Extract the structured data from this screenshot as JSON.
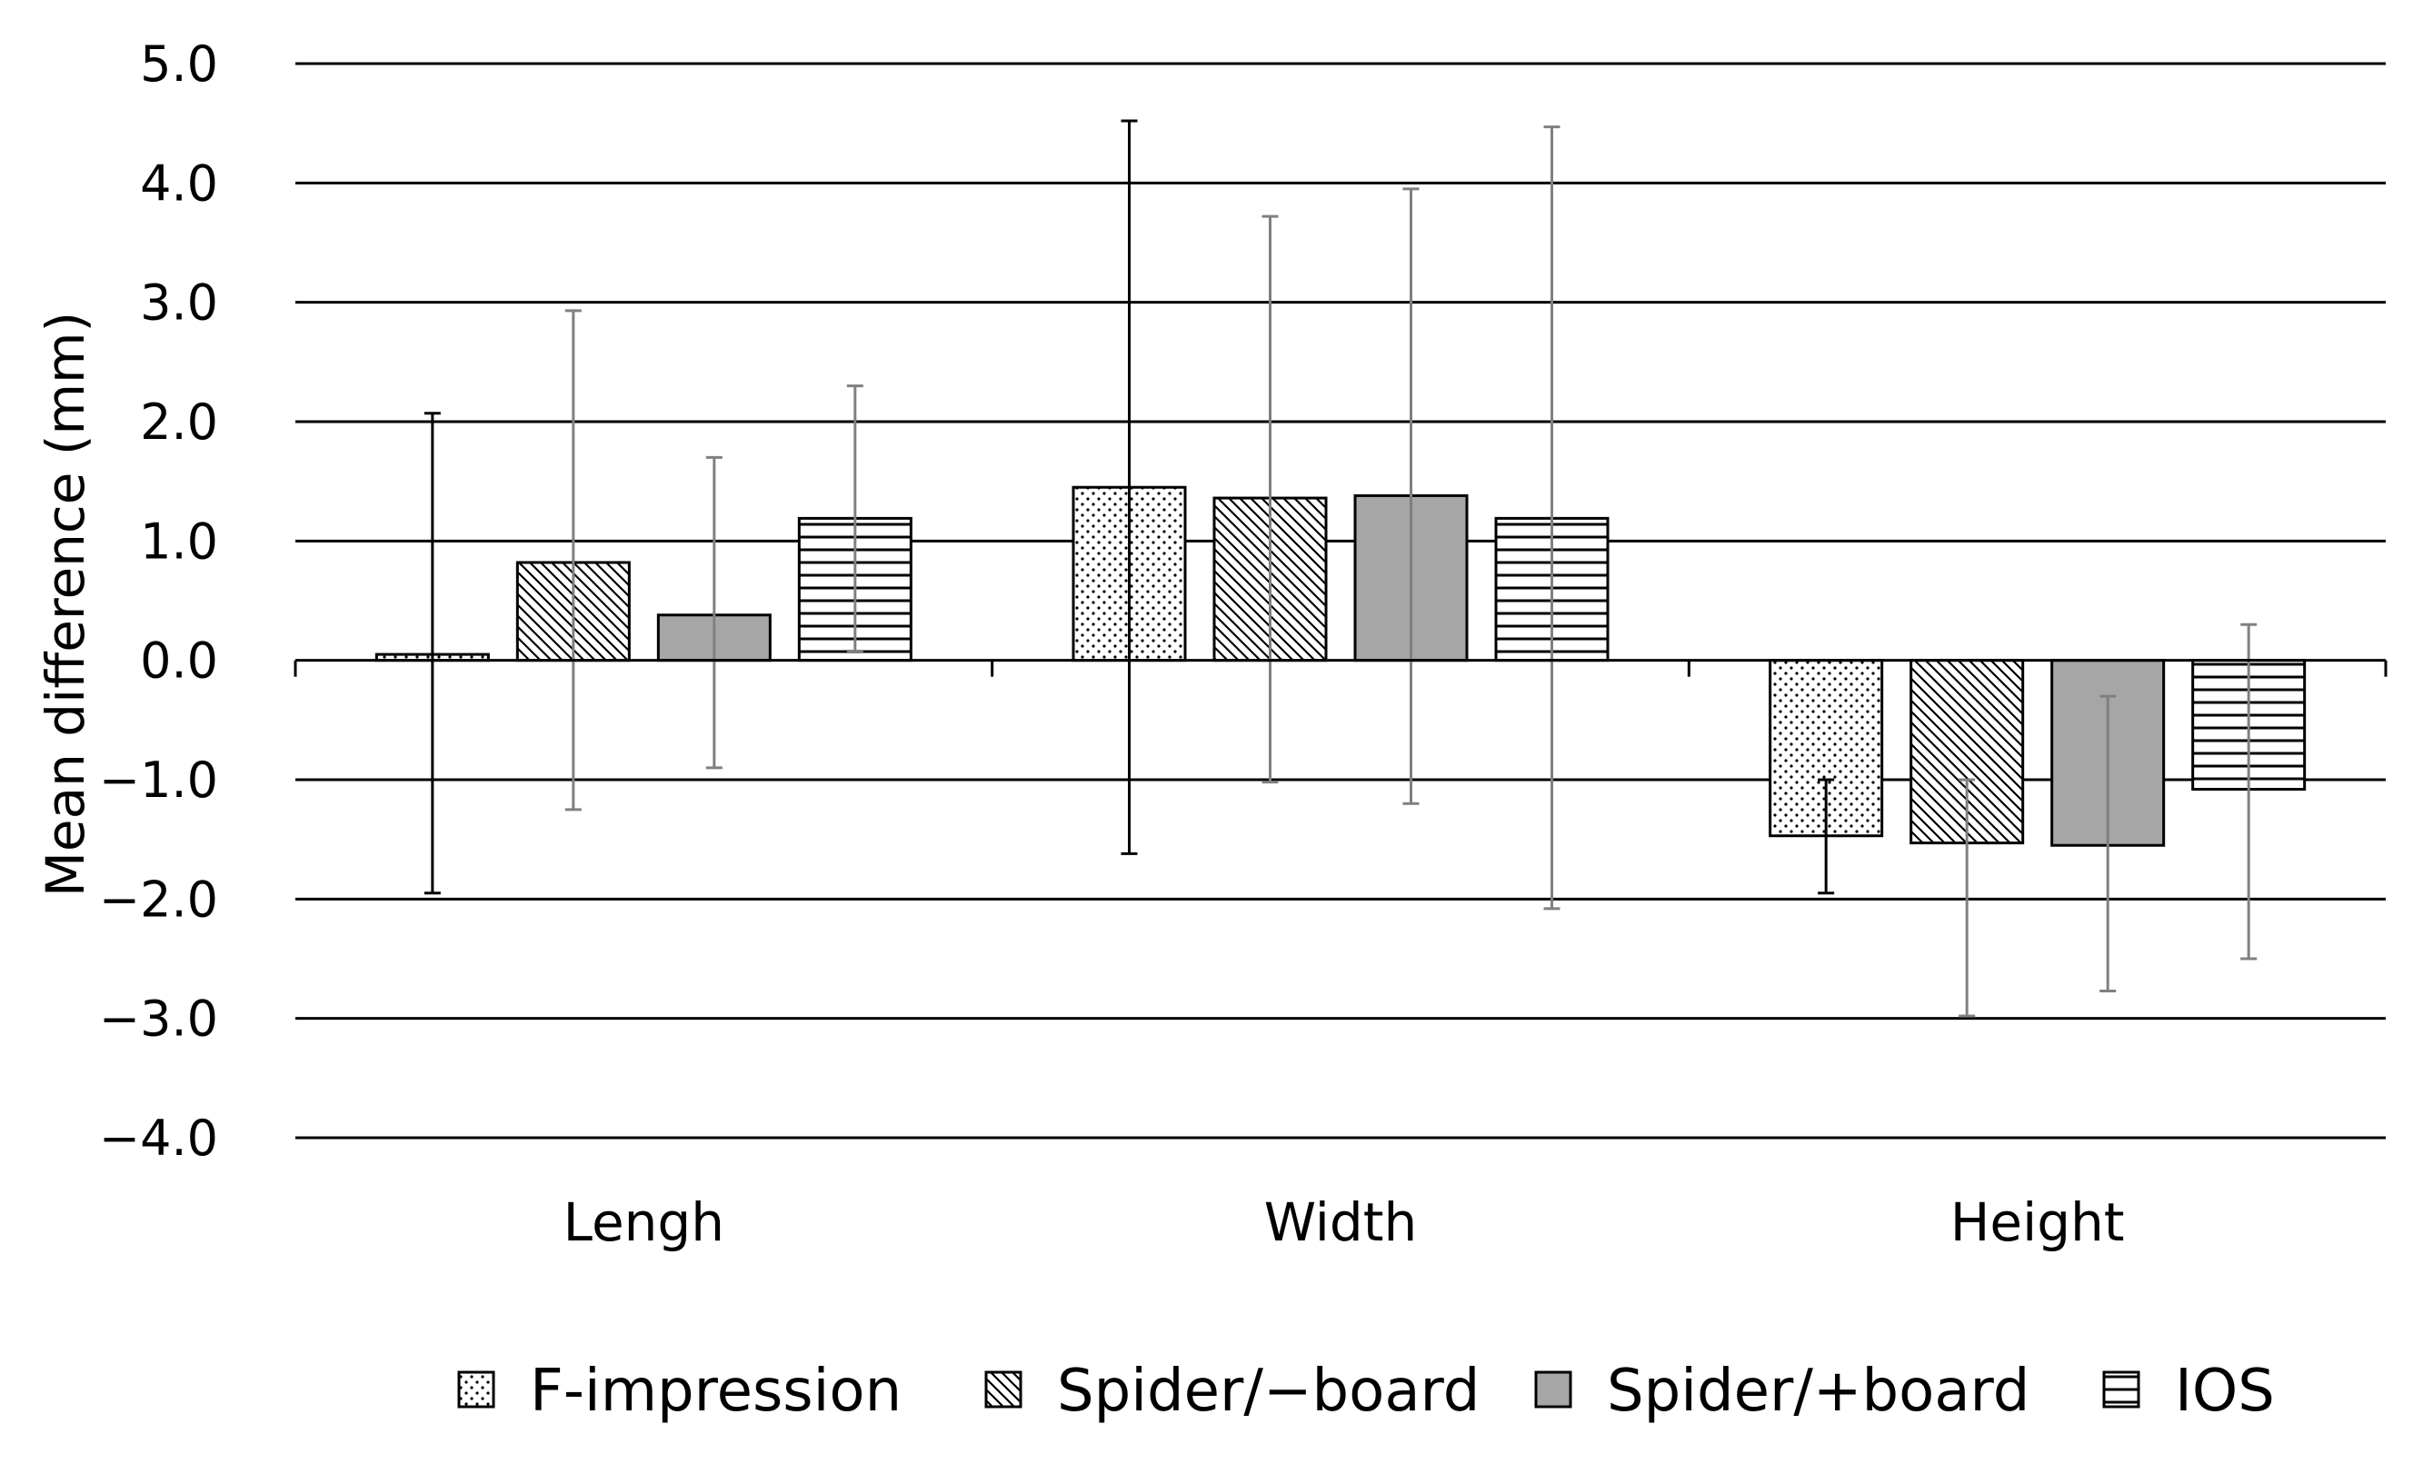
{
  "chart_data": {
    "type": "bar",
    "title": "",
    "xlabel": "",
    "ylabel": "Mean difference (mm)",
    "ylim": [
      -4.0,
      5.0
    ],
    "yticks": [
      5.0,
      4.0,
      3.0,
      2.0,
      1.0,
      0.0,
      -1.0,
      -2.0,
      -3.0,
      -4.0
    ],
    "ytick_labels": [
      "5.0",
      "4.0",
      "3.0",
      "2.0",
      "1.0",
      "0.0",
      "−1.0",
      "−2.0",
      "−3.0",
      "−4.0"
    ],
    "grid": true,
    "legend_position": "bottom",
    "categories": [
      "Lengh",
      "Width",
      "Height"
    ],
    "series": [
      {
        "name": "F-impression",
        "pattern": "dots",
        "values": [
          0.05,
          1.45,
          -1.47
        ],
        "error_low": [
          -1.95,
          -1.62,
          -1.95
        ],
        "error_high": [
          2.07,
          4.52,
          -1.0
        ]
      },
      {
        "name": "Spider/−board",
        "pattern": "diagonal",
        "values": [
          0.82,
          1.36,
          -1.53
        ],
        "error_low": [
          -1.25,
          -1.02,
          -2.98
        ],
        "error_high": [
          2.93,
          3.72,
          -1.0
        ]
      },
      {
        "name": "Spider/+board",
        "pattern": "solid",
        "values": [
          0.38,
          1.38,
          -1.55
        ],
        "error_low": [
          -0.9,
          -1.2,
          -2.77
        ],
        "error_high": [
          1.7,
          3.95,
          -0.3
        ]
      },
      {
        "name": "IOS",
        "pattern": "horizontal",
        "values": [
          1.19,
          1.19,
          -1.08
        ],
        "error_low": [
          0.07,
          -2.08,
          -2.5
        ],
        "error_high": [
          2.3,
          4.47,
          0.3
        ]
      }
    ],
    "colors": {
      "solid_fill": "#a6a6a6",
      "axis": "#000000",
      "grid": "#000000",
      "error_bar": "#808080",
      "error_bar_first": "#000000"
    }
  }
}
